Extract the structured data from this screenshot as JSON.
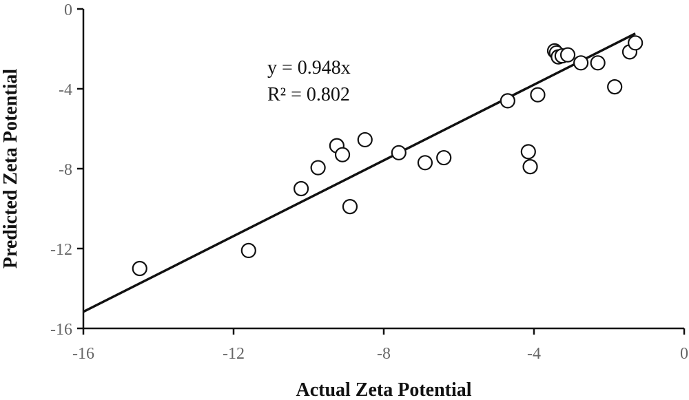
{
  "chart_data": {
    "type": "scatter",
    "title": "",
    "xlabel": "Actual Zeta Potential",
    "ylabel": "Predicted Zeta Potential",
    "xlim": [
      -16,
      0
    ],
    "ylim": [
      -16,
      0
    ],
    "xticks": [
      -16,
      -12,
      -8,
      -4,
      0
    ],
    "yticks": [
      0,
      -4,
      -8,
      -12,
      -16
    ],
    "grid": false,
    "legend": "none",
    "trendline": {
      "slope": 0.948,
      "intercept": 0,
      "x_range": [
        -16,
        -1.3
      ],
      "equation_label": "y = 0.948x",
      "r2_label": "R² = 0.802"
    },
    "points": [
      {
        "x": -14.5,
        "y": -13.0
      },
      {
        "x": -11.6,
        "y": -12.1
      },
      {
        "x": -10.2,
        "y": -9.0
      },
      {
        "x": -9.75,
        "y": -7.95
      },
      {
        "x": -9.25,
        "y": -6.85
      },
      {
        "x": -9.1,
        "y": -7.3
      },
      {
        "x": -8.9,
        "y": -9.9
      },
      {
        "x": -8.5,
        "y": -6.55
      },
      {
        "x": -7.6,
        "y": -7.2
      },
      {
        "x": -6.9,
        "y": -7.7
      },
      {
        "x": -6.4,
        "y": -7.45
      },
      {
        "x": -4.7,
        "y": -4.6
      },
      {
        "x": -4.15,
        "y": -7.15
      },
      {
        "x": -4.1,
        "y": -7.9
      },
      {
        "x": -3.9,
        "y": -4.3
      },
      {
        "x": -3.45,
        "y": -2.1
      },
      {
        "x": -3.4,
        "y": -2.2
      },
      {
        "x": -3.35,
        "y": -2.4
      },
      {
        "x": -3.25,
        "y": -2.35
      },
      {
        "x": -3.1,
        "y": -2.3
      },
      {
        "x": -2.75,
        "y": -2.7
      },
      {
        "x": -2.3,
        "y": -2.7
      },
      {
        "x": -1.85,
        "y": -3.9
      },
      {
        "x": -1.45,
        "y": -2.15
      },
      {
        "x": -1.3,
        "y": -1.7
      }
    ]
  }
}
